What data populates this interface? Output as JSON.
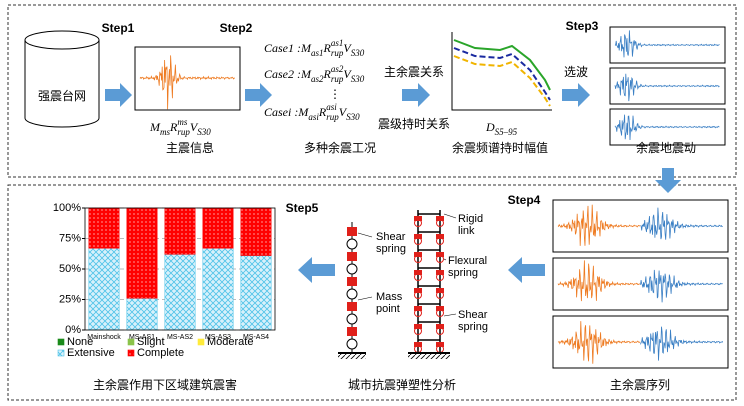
{
  "steps": [
    "Step1",
    "Step2",
    "Step3",
    "Step4",
    "Step5"
  ],
  "station": "强震台网",
  "mainshock": {
    "formula": [
      {
        "t": "M",
        "sub": "ms"
      },
      {
        "t": "R",
        "sup": "ms",
        "sub": "rup"
      },
      {
        "t": "V",
        "sub": "S30"
      }
    ],
    "caption": "主震信息"
  },
  "cases": {
    "rows": [
      {
        "label": "Case1 :",
        "formula": [
          {
            "t": "M",
            "sub": "as1"
          },
          {
            "t": "R",
            "sup": "as1",
            "sub": "rup"
          },
          {
            "t": "V",
            "sub": "S30"
          }
        ]
      },
      {
        "label": "Case2 :",
        "formula": [
          {
            "t": "M",
            "sub": "as2"
          },
          {
            "t": "R",
            "sup": "as2",
            "sub": "rup"
          },
          {
            "t": "V",
            "sub": "S30"
          }
        ]
      },
      {
        "label": "Casei :",
        "formula": [
          {
            "t": "M",
            "sub": "asi"
          },
          {
            "t": "R",
            "sup": "asi",
            "sub": "rup"
          },
          {
            "t": "V",
            "sub": "S30"
          }
        ]
      }
    ],
    "caption": "多种余震工况"
  },
  "relations": {
    "top": "主余震关系",
    "bottom": "震级持时关系"
  },
  "duration": {
    "formula": [
      {
        "t": "D",
        "sub": "S5–95"
      }
    ],
    "caption": "余震频谱持时幅值"
  },
  "selection": "选波",
  "aftershock_caption": "余震地震动",
  "sequence_caption": "主余震序列",
  "analysis": {
    "caption": "城市抗震弹塑性分析",
    "labels": [
      {
        "lines": [
          "Shear",
          "spring"
        ]
      },
      {
        "lines": [
          "Mass",
          "point"
        ]
      },
      {
        "lines": [
          "Rigid",
          "link"
        ]
      },
      {
        "lines": [
          "Flexural",
          "spring"
        ]
      },
      {
        "lines": [
          "Shear",
          "spring"
        ]
      }
    ]
  },
  "chart": {
    "type": "bar",
    "stacked": true,
    "caption": "主余震作用下区域建筑震害",
    "categories": [
      "Mainshock",
      "MS-AS1",
      "MS-AS2",
      "MS-AS3",
      "MS-AS4"
    ],
    "series": [
      {
        "name": "None",
        "color": "#1a8a1a",
        "pattern": "solid",
        "values": [
          0,
          0,
          0,
          0,
          0
        ]
      },
      {
        "name": "Slight",
        "color": "#8bc34a",
        "pattern": "solid",
        "values": [
          0,
          0,
          0,
          0,
          0
        ]
      },
      {
        "name": "Moderate",
        "color": "#ffeb3b",
        "pattern": "solid",
        "values": [
          0,
          0,
          0,
          0,
          0
        ]
      },
      {
        "name": "Extensive",
        "color": "#4fc3e8",
        "pattern": "cross",
        "values": [
          67,
          26,
          62,
          67,
          61
        ]
      },
      {
        "name": "Complete",
        "color": "#ff0000",
        "pattern": "dots",
        "values": [
          33,
          74,
          38,
          33,
          39
        ]
      }
    ],
    "ylim": [
      0,
      100
    ],
    "yticks": [
      {
        "value": 0,
        "label": "0%"
      },
      {
        "value": 25,
        "label": "25%"
      },
      {
        "value": 50,
        "label": "50%"
      },
      {
        "value": 75,
        "label": "75%"
      },
      {
        "value": 100,
        "label": "100%"
      }
    ],
    "grid": true
  }
}
